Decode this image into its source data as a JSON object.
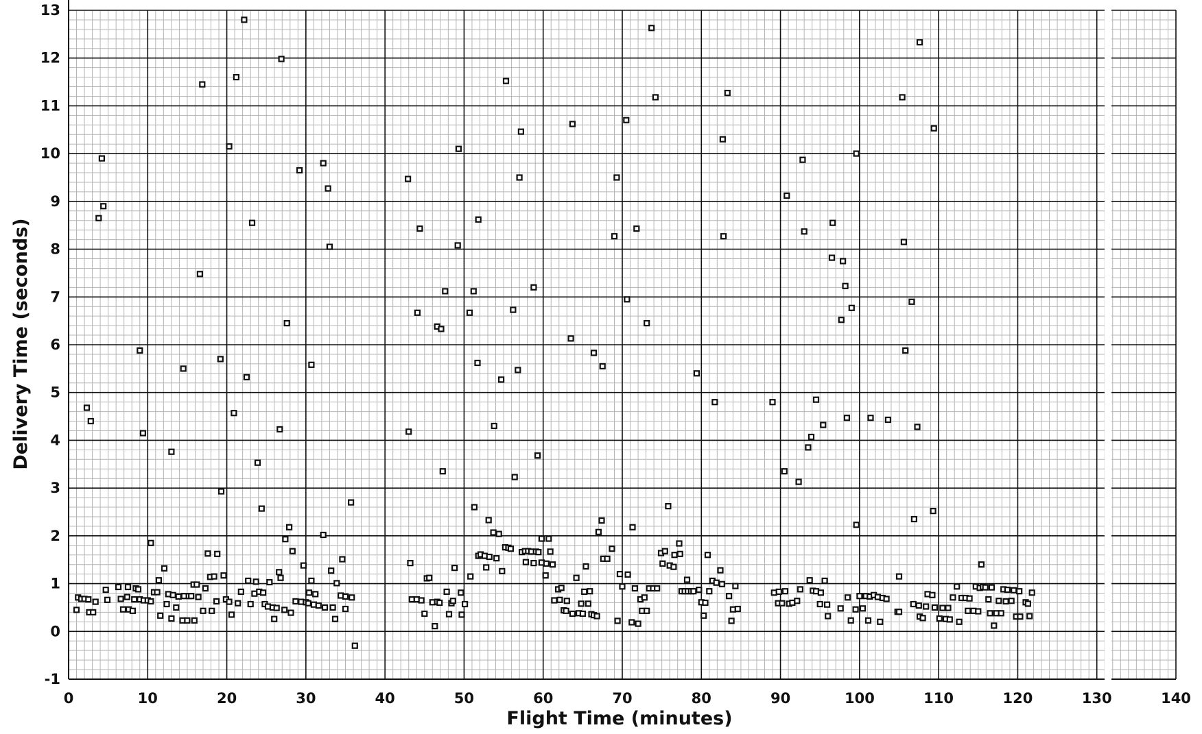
{
  "chart_data": {
    "type": "scatter",
    "title": "",
    "xlabel": "Flight Time  (minutes)",
    "ylabel": "Delivery Time  (seconds)",
    "xlim": [
      0,
      140
    ],
    "ylim": [
      -1,
      13
    ],
    "x_ticks": [
      0,
      10,
      20,
      30,
      40,
      50,
      60,
      70,
      80,
      90,
      100,
      110,
      120,
      130,
      140
    ],
    "y_ticks": [
      -1,
      0,
      1,
      2,
      3,
      4,
      5,
      6,
      7,
      8,
      9,
      10,
      11,
      12,
      13
    ],
    "grid": "major and minor",
    "marker": "small hollow square",
    "colors": {
      "points": "#111111",
      "major_grid": "#111111",
      "minor_grid": "#b4b4b4",
      "background": "#ffffff"
    },
    "points": [
      [
        2.3,
        4.68
      ],
      [
        2.8,
        4.4
      ],
      [
        3.8,
        8.65
      ],
      [
        4.2,
        9.9
      ],
      [
        4.4,
        8.9
      ],
      [
        9.0,
        5.88
      ],
      [
        9.4,
        4.15
      ],
      [
        10.4,
        1.85
      ],
      [
        13.0,
        3.76
      ],
      [
        14.5,
        5.5
      ],
      [
        16.6,
        7.48
      ],
      [
        16.9,
        11.45
      ],
      [
        19.2,
        5.7
      ],
      [
        19.3,
        2.93
      ],
      [
        20.3,
        10.15
      ],
      [
        20.9,
        4.57
      ],
      [
        21.2,
        11.6
      ],
      [
        22.2,
        12.8
      ],
      [
        22.5,
        5.32
      ],
      [
        23.2,
        8.55
      ],
      [
        23.9,
        3.53
      ],
      [
        24.4,
        2.57
      ],
      [
        26.7,
        4.23
      ],
      [
        26.9,
        11.98
      ],
      [
        27.6,
        6.45
      ],
      [
        29.2,
        9.65
      ],
      [
        30.7,
        5.58
      ],
      [
        32.2,
        9.8
      ],
      [
        32.8,
        9.27
      ],
      [
        33.0,
        8.05
      ],
      [
        35.7,
        2.7
      ],
      [
        42.9,
        9.47
      ],
      [
        43.0,
        4.18
      ],
      [
        44.4,
        8.43
      ],
      [
        44.1,
        6.67
      ],
      [
        46.6,
        6.38
      ],
      [
        47.1,
        6.33
      ],
      [
        47.3,
        3.35
      ],
      [
        47.6,
        7.12
      ],
      [
        49.2,
        8.08
      ],
      [
        49.3,
        10.1
      ],
      [
        50.7,
        6.67
      ],
      [
        51.2,
        7.12
      ],
      [
        51.7,
        5.62
      ],
      [
        51.8,
        8.62
      ],
      [
        53.8,
        4.3
      ],
      [
        54.7,
        5.27
      ],
      [
        55.3,
        11.52
      ],
      [
        56.2,
        6.73
      ],
      [
        56.4,
        3.23
      ],
      [
        56.8,
        5.47
      ],
      [
        57.0,
        9.5
      ],
      [
        57.2,
        10.46
      ],
      [
        58.8,
        7.2
      ],
      [
        59.3,
        3.68
      ],
      [
        63.5,
        6.13
      ],
      [
        63.7,
        10.62
      ],
      [
        66.4,
        5.83
      ],
      [
        67.5,
        5.55
      ],
      [
        69.0,
        8.27
      ],
      [
        69.3,
        9.5
      ],
      [
        70.5,
        10.7
      ],
      [
        70.6,
        6.95
      ],
      [
        71.8,
        8.43
      ],
      [
        73.1,
        6.45
      ],
      [
        73.7,
        12.63
      ],
      [
        74.2,
        11.18
      ],
      [
        79.4,
        5.4
      ],
      [
        81.7,
        4.8
      ],
      [
        82.7,
        10.3
      ],
      [
        82.8,
        8.27
      ],
      [
        83.3,
        11.27
      ],
      [
        89.0,
        4.8
      ],
      [
        90.5,
        3.35
      ],
      [
        90.8,
        9.12
      ],
      [
        92.3,
        3.13
      ],
      [
        92.8,
        9.87
      ],
      [
        93.0,
        8.37
      ],
      [
        93.5,
        3.85
      ],
      [
        93.9,
        4.07
      ],
      [
        94.5,
        4.85
      ],
      [
        95.4,
        4.32
      ],
      [
        96.5,
        7.82
      ],
      [
        96.6,
        8.55
      ],
      [
        97.7,
        6.52
      ],
      [
        97.9,
        7.75
      ],
      [
        98.2,
        7.23
      ],
      [
        98.4,
        4.47
      ],
      [
        99.0,
        6.77
      ],
      [
        99.6,
        10.0
      ],
      [
        99.6,
        2.23
      ],
      [
        101.4,
        4.47
      ],
      [
        103.6,
        4.43
      ],
      [
        105.4,
        11.18
      ],
      [
        105.6,
        8.15
      ],
      [
        105.8,
        5.88
      ],
      [
        106.6,
        6.9
      ],
      [
        106.9,
        2.35
      ],
      [
        107.3,
        4.28
      ],
      [
        107.6,
        12.33
      ],
      [
        109.3,
        2.52
      ],
      [
        109.4,
        10.53
      ],
      [
        26.8,
        1.12
      ],
      [
        36.2,
        -0.3
      ],
      [
        115.4,
        1.4
      ],
      [
        1.0,
        0.45
      ],
      [
        1.2,
        0.71
      ],
      [
        1.6,
        0.68
      ],
      [
        2.0,
        0.68
      ],
      [
        2.5,
        0.67
      ],
      [
        2.6,
        0.4
      ],
      [
        3.1,
        0.4
      ],
      [
        3.4,
        0.62
      ],
      [
        4.7,
        0.87
      ],
      [
        4.9,
        0.66
      ],
      [
        6.3,
        0.93
      ],
      [
        6.6,
        0.68
      ],
      [
        6.9,
        0.46
      ],
      [
        7.4,
        0.72
      ],
      [
        7.5,
        0.93
      ],
      [
        7.6,
        0.46
      ],
      [
        8.1,
        0.43
      ],
      [
        8.3,
        0.67
      ],
      [
        8.5,
        0.9
      ],
      [
        8.8,
        0.88
      ],
      [
        9.0,
        0.67
      ],
      [
        9.5,
        0.65
      ],
      [
        10.0,
        0.65
      ],
      [
        10.4,
        0.63
      ],
      [
        10.8,
        0.82
      ],
      [
        11.2,
        0.82
      ],
      [
        11.4,
        1.07
      ],
      [
        11.6,
        0.33
      ],
      [
        12.1,
        1.32
      ],
      [
        12.4,
        0.57
      ],
      [
        12.6,
        0.78
      ],
      [
        13.0,
        0.27
      ],
      [
        13.2,
        0.76
      ],
      [
        13.6,
        0.5
      ],
      [
        13.9,
        0.73
      ],
      [
        14.4,
        0.23
      ],
      [
        14.6,
        0.74
      ],
      [
        15.0,
        0.23
      ],
      [
        15.2,
        0.74
      ],
      [
        15.5,
        0.74
      ],
      [
        15.8,
        0.98
      ],
      [
        15.9,
        0.23
      ],
      [
        16.2,
        0.98
      ],
      [
        16.4,
        0.72
      ],
      [
        17.0,
        0.43
      ],
      [
        17.3,
        0.9
      ],
      [
        17.6,
        1.63
      ],
      [
        17.9,
        1.14
      ],
      [
        18.1,
        0.43
      ],
      [
        18.4,
        1.15
      ],
      [
        18.7,
        0.63
      ],
      [
        18.8,
        1.62
      ],
      [
        19.6,
        1.17
      ],
      [
        19.9,
        0.67
      ],
      [
        20.3,
        0.62
      ],
      [
        20.6,
        0.35
      ],
      [
        21.4,
        0.59
      ],
      [
        21.8,
        0.83
      ],
      [
        22.7,
        1.06
      ],
      [
        23.0,
        0.57
      ],
      [
        23.5,
        0.79
      ],
      [
        23.7,
        1.04
      ],
      [
        24.1,
        0.83
      ],
      [
        24.6,
        0.81
      ],
      [
        24.8,
        0.57
      ],
      [
        25.2,
        0.52
      ],
      [
        25.4,
        1.03
      ],
      [
        25.8,
        0.5
      ],
      [
        26.0,
        0.26
      ],
      [
        26.3,
        0.49
      ],
      [
        26.6,
        1.24
      ],
      [
        27.3,
        0.45
      ],
      [
        27.4,
        1.93
      ],
      [
        27.9,
        2.18
      ],
      [
        28.1,
        0.39
      ],
      [
        28.3,
        1.68
      ],
      [
        28.7,
        0.63
      ],
      [
        29.4,
        0.62
      ],
      [
        29.7,
        1.38
      ],
      [
        30.0,
        0.61
      ],
      [
        30.3,
        0.59
      ],
      [
        30.4,
        0.81
      ],
      [
        30.7,
        1.06
      ],
      [
        31.0,
        0.56
      ],
      [
        31.2,
        0.78
      ],
      [
        31.6,
        0.54
      ],
      [
        32.2,
        2.02
      ],
      [
        32.4,
        0.5
      ],
      [
        33.2,
        1.27
      ],
      [
        33.4,
        0.5
      ],
      [
        33.7,
        0.26
      ],
      [
        33.9,
        1.01
      ],
      [
        34.4,
        0.75
      ],
      [
        34.6,
        1.51
      ],
      [
        35.0,
        0.47
      ],
      [
        35.0,
        0.73
      ],
      [
        35.8,
        0.71
      ],
      [
        43.2,
        1.43
      ],
      [
        43.4,
        0.67
      ],
      [
        44.0,
        0.67
      ],
      [
        44.6,
        0.65
      ],
      [
        45.0,
        0.37
      ],
      [
        45.3,
        1.11
      ],
      [
        45.6,
        1.12
      ],
      [
        46.0,
        0.61
      ],
      [
        46.3,
        0.11
      ],
      [
        46.6,
        0.62
      ],
      [
        46.9,
        0.6
      ],
      [
        47.8,
        0.83
      ],
      [
        48.1,
        0.36
      ],
      [
        48.4,
        0.59
      ],
      [
        48.6,
        0.64
      ],
      [
        48.8,
        1.33
      ],
      [
        49.6,
        0.81
      ],
      [
        49.7,
        0.35
      ],
      [
        50.1,
        0.57
      ],
      [
        50.8,
        1.15
      ],
      [
        51.3,
        2.6
      ],
      [
        51.8,
        1.58
      ],
      [
        52.1,
        1.61
      ],
      [
        52.6,
        1.58
      ],
      [
        52.8,
        1.34
      ],
      [
        53.1,
        2.33
      ],
      [
        53.2,
        1.56
      ],
      [
        53.7,
        2.07
      ],
      [
        54.1,
        1.53
      ],
      [
        54.4,
        2.04
      ],
      [
        54.8,
        1.26
      ],
      [
        55.2,
        1.76
      ],
      [
        55.6,
        1.75
      ],
      [
        55.9,
        1.73
      ],
      [
        57.3,
        1.66
      ],
      [
        57.7,
        1.68
      ],
      [
        57.8,
        1.45
      ],
      [
        58.1,
        1.68
      ],
      [
        58.5,
        1.67
      ],
      [
        58.8,
        1.43
      ],
      [
        59.1,
        1.67
      ],
      [
        59.4,
        1.66
      ],
      [
        59.8,
        1.94
      ],
      [
        59.8,
        1.44
      ],
      [
        60.3,
        1.17
      ],
      [
        60.4,
        1.42
      ],
      [
        60.7,
        1.94
      ],
      [
        60.9,
        1.67
      ],
      [
        61.2,
        1.4
      ],
      [
        61.4,
        0.65
      ],
      [
        61.9,
        0.88
      ],
      [
        62.1,
        0.66
      ],
      [
        62.3,
        0.91
      ],
      [
        62.6,
        0.44
      ],
      [
        62.9,
        0.43
      ],
      [
        63.0,
        0.64
      ],
      [
        63.7,
        0.37
      ],
      [
        64.2,
        1.12
      ],
      [
        64.5,
        0.38
      ],
      [
        64.8,
        0.58
      ],
      [
        65.0,
        0.37
      ],
      [
        65.2,
        0.83
      ],
      [
        65.4,
        1.36
      ],
      [
        65.7,
        0.58
      ],
      [
        65.9,
        0.84
      ],
      [
        66.1,
        0.36
      ],
      [
        66.4,
        0.34
      ],
      [
        66.8,
        0.32
      ],
      [
        67.0,
        2.08
      ],
      [
        67.4,
        2.32
      ],
      [
        67.6,
        1.52
      ],
      [
        68.1,
        1.52
      ],
      [
        68.7,
        1.73
      ],
      [
        69.4,
        0.22
      ],
      [
        69.7,
        1.2
      ],
      [
        70.0,
        0.94
      ],
      [
        70.7,
        1.19
      ],
      [
        71.2,
        0.19
      ],
      [
        71.3,
        2.18
      ],
      [
        71.6,
        0.9
      ],
      [
        72.0,
        0.16
      ],
      [
        72.3,
        0.67
      ],
      [
        72.5,
        0.43
      ],
      [
        72.8,
        0.71
      ],
      [
        73.1,
        0.43
      ],
      [
        73.4,
        0.9
      ],
      [
        73.9,
        0.9
      ],
      [
        74.4,
        0.9
      ],
      [
        74.9,
        1.64
      ],
      [
        75.1,
        1.42
      ],
      [
        75.4,
        1.68
      ],
      [
        75.8,
        2.62
      ],
      [
        76.0,
        1.38
      ],
      [
        76.5,
        1.35
      ],
      [
        76.6,
        1.6
      ],
      [
        77.2,
        1.84
      ],
      [
        77.3,
        1.62
      ],
      [
        77.5,
        0.84
      ],
      [
        77.9,
        0.84
      ],
      [
        78.2,
        1.08
      ],
      [
        78.3,
        0.84
      ],
      [
        78.7,
        0.84
      ],
      [
        79.0,
        0.84
      ],
      [
        79.7,
        0.87
      ],
      [
        80.0,
        0.61
      ],
      [
        80.3,
        0.33
      ],
      [
        80.5,
        0.6
      ],
      [
        80.8,
        1.6
      ],
      [
        81.0,
        0.84
      ],
      [
        81.4,
        1.06
      ],
      [
        81.9,
        1.02
      ],
      [
        82.4,
        1.28
      ],
      [
        82.6,
        0.99
      ],
      [
        83.5,
        0.74
      ],
      [
        83.8,
        0.22
      ],
      [
        84.0,
        0.46
      ],
      [
        84.3,
        0.95
      ],
      [
        84.6,
        0.47
      ],
      [
        89.2,
        0.81
      ],
      [
        89.7,
        0.59
      ],
      [
        89.8,
        0.83
      ],
      [
        90.2,
        0.59
      ],
      [
        90.6,
        0.84
      ],
      [
        91.1,
        0.58
      ],
      [
        91.5,
        0.6
      ],
      [
        92.1,
        0.64
      ],
      [
        92.5,
        0.88
      ],
      [
        93.7,
        1.07
      ],
      [
        94.1,
        0.85
      ],
      [
        94.5,
        0.84
      ],
      [
        95.0,
        0.57
      ],
      [
        95.1,
        0.81
      ],
      [
        95.6,
        1.06
      ],
      [
        95.9,
        0.56
      ],
      [
        96.0,
        0.32
      ],
      [
        97.6,
        0.48
      ],
      [
        98.5,
        0.71
      ],
      [
        98.9,
        0.23
      ],
      [
        99.5,
        0.46
      ],
      [
        100.0,
        0.74
      ],
      [
        100.4,
        0.48
      ],
      [
        100.8,
        0.74
      ],
      [
        101.1,
        0.23
      ],
      [
        101.3,
        0.73
      ],
      [
        101.8,
        0.76
      ],
      [
        102.3,
        0.72
      ],
      [
        102.6,
        0.2
      ],
      [
        102.9,
        0.7
      ],
      [
        103.4,
        0.68
      ],
      [
        104.8,
        0.41
      ],
      [
        105.0,
        0.41
      ],
      [
        105.0,
        1.15
      ],
      [
        106.8,
        0.57
      ],
      [
        107.5,
        0.54
      ],
      [
        107.6,
        0.31
      ],
      [
        108.0,
        0.28
      ],
      [
        108.4,
        0.52
      ],
      [
        108.6,
        0.78
      ],
      [
        109.2,
        0.76
      ],
      [
        109.5,
        0.5
      ],
      [
        110.1,
        0.27
      ],
      [
        110.5,
        0.49
      ],
      [
        110.9,
        0.26
      ],
      [
        111.2,
        0.49
      ],
      [
        111.4,
        0.25
      ],
      [
        111.8,
        0.71
      ],
      [
        112.3,
        0.94
      ],
      [
        112.6,
        0.2
      ],
      [
        112.9,
        0.7
      ],
      [
        113.4,
        0.7
      ],
      [
        113.7,
        0.43
      ],
      [
        113.9,
        0.69
      ],
      [
        114.4,
        0.43
      ],
      [
        114.7,
        0.94
      ],
      [
        115.0,
        0.42
      ],
      [
        115.2,
        0.91
      ],
      [
        115.6,
        0.93
      ],
      [
        115.9,
        0.92
      ],
      [
        116.3,
        0.67
      ],
      [
        116.5,
        0.38
      ],
      [
        116.7,
        0.92
      ],
      [
        117.0,
        0.12
      ],
      [
        117.3,
        0.38
      ],
      [
        117.6,
        0.64
      ],
      [
        117.9,
        0.38
      ],
      [
        118.2,
        0.88
      ],
      [
        118.5,
        0.63
      ],
      [
        118.7,
        0.87
      ],
      [
        119.2,
        0.64
      ],
      [
        119.5,
        0.86
      ],
      [
        119.8,
        0.31
      ],
      [
        120.2,
        0.84
      ],
      [
        120.3,
        0.31
      ],
      [
        121.0,
        0.61
      ],
      [
        121.3,
        0.58
      ],
      [
        121.5,
        0.32
      ],
      [
        121.8,
        0.81
      ]
    ]
  }
}
